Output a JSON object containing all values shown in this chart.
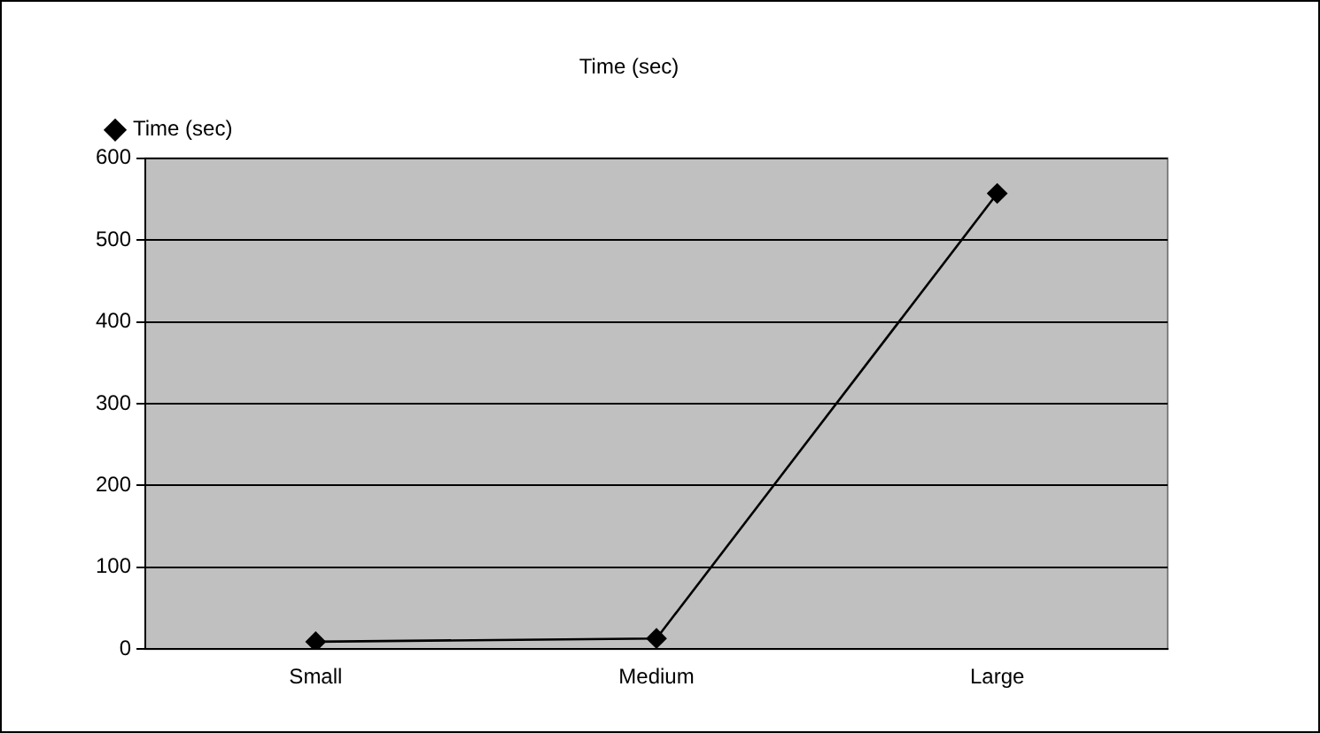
{
  "chart_data": {
    "type": "line",
    "title": "Time (sec)",
    "categories": [
      "Small",
      "Medium",
      "Large"
    ],
    "series": [
      {
        "name": "Time (sec)",
        "color": "#000000",
        "values": [
          9,
          13,
          557
        ]
      }
    ],
    "ylim": [
      0,
      600
    ],
    "yticks": [
      0,
      100,
      200,
      300,
      400,
      500,
      600
    ],
    "grid": "y",
    "legend": "top left",
    "marker": "diamond",
    "line_style": "solid"
  }
}
